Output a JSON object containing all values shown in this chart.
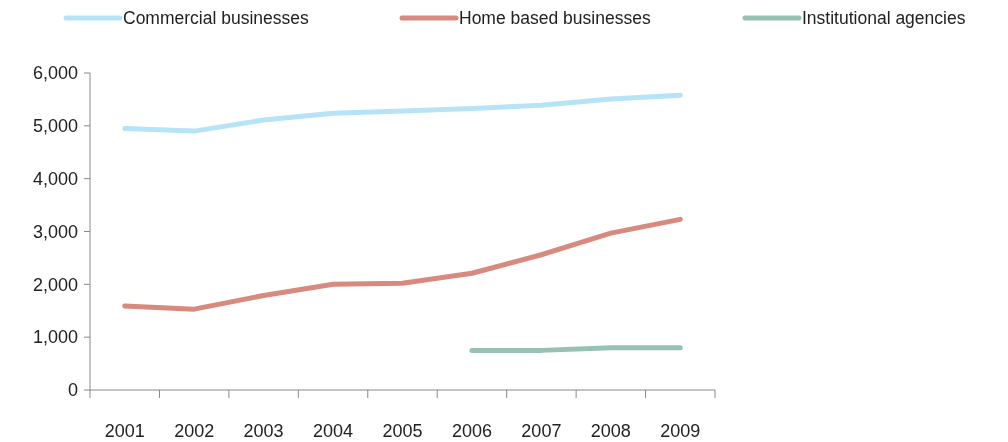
{
  "chart_data": {
    "type": "line",
    "categories": [
      "2001",
      "2002",
      "2003",
      "2004",
      "2005",
      "2006",
      "2007",
      "2008",
      "2009"
    ],
    "series": [
      {
        "name": "Commercial businesses",
        "color": "#b7e3f7",
        "values": [
          4950,
          4900,
          5110,
          5240,
          5280,
          5330,
          5390,
          5510,
          5580
        ]
      },
      {
        "name": "Home based businesses",
        "color": "#d88a7e",
        "values": [
          1590,
          1530,
          1790,
          2000,
          2020,
          2210,
          2560,
          2970,
          3230
        ]
      },
      {
        "name": "Institutional agencies",
        "color": "#97c1b5",
        "values": [
          null,
          null,
          null,
          null,
          null,
          750,
          750,
          800,
          800
        ]
      }
    ],
    "ylim": [
      0,
      6000
    ],
    "yticks": [
      {
        "value": 0,
        "label": "0"
      },
      {
        "value": 1000,
        "label": "1,000"
      },
      {
        "value": 2000,
        "label": "2,000"
      },
      {
        "value": 3000,
        "label": "3,000"
      },
      {
        "value": 4000,
        "label": "4,000"
      },
      {
        "value": 5000,
        "label": "5,000"
      },
      {
        "value": 6000,
        "label": "6,000"
      }
    ],
    "grid": false,
    "legend": "top",
    "line_style": "solid",
    "marker": "none"
  }
}
